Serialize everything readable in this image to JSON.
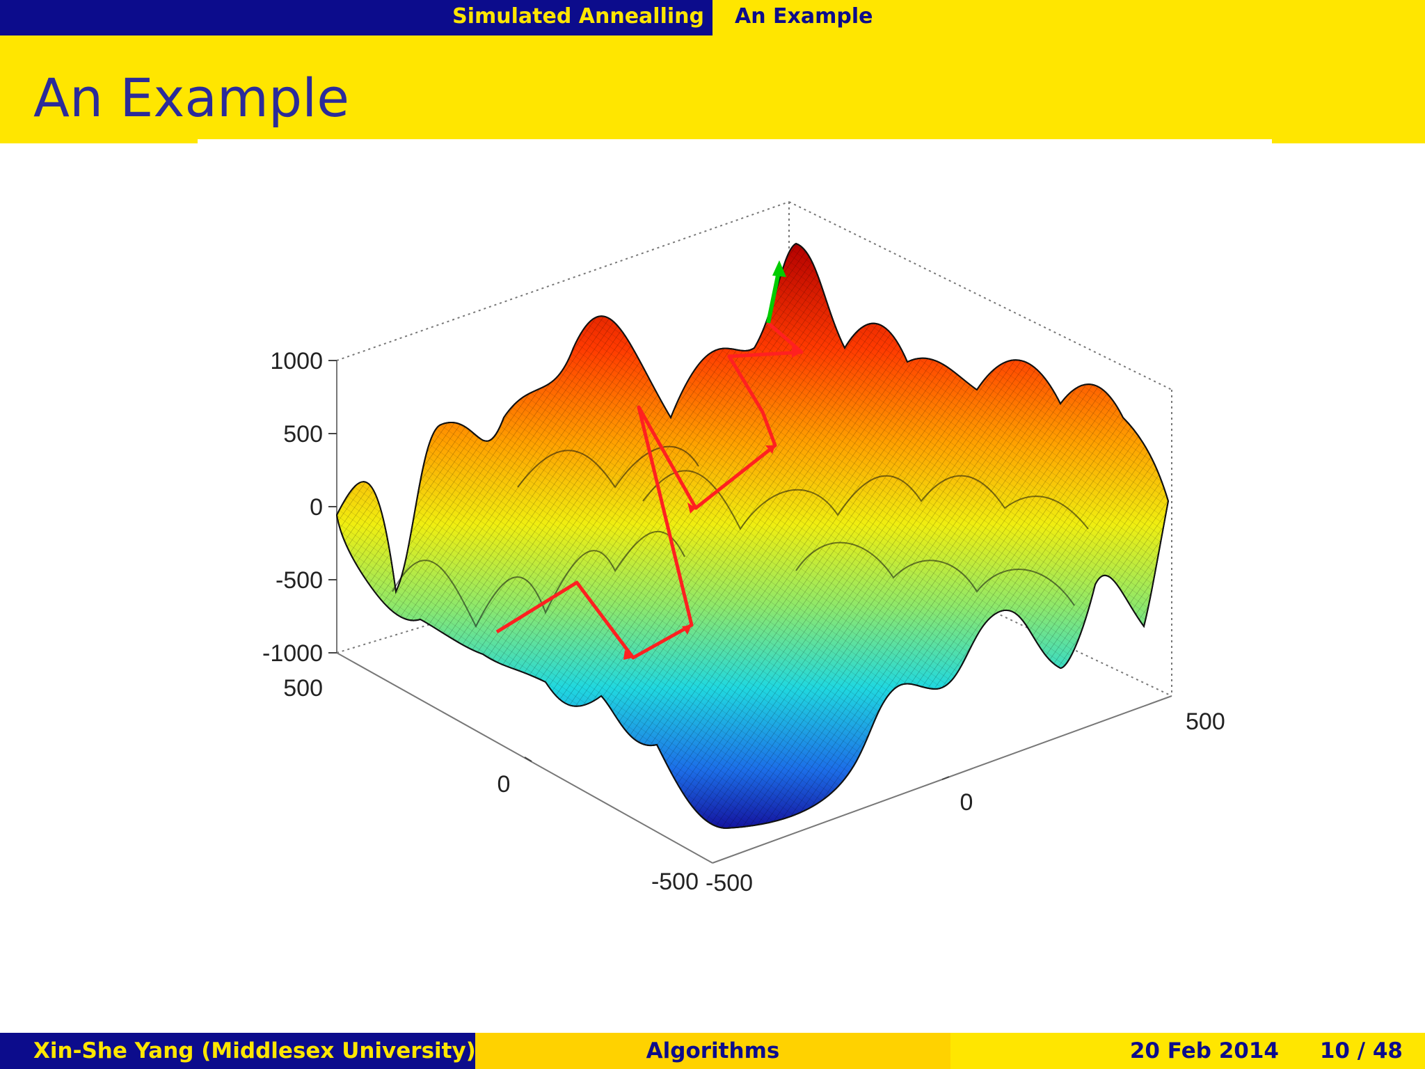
{
  "header": {
    "sections": [
      "Simulated Annealling",
      "An Example"
    ]
  },
  "slide": {
    "title": "An Example"
  },
  "chart_data": {
    "type": "surface",
    "z_ticks": [
      "1000",
      "500",
      "0",
      "-500",
      "-1000"
    ],
    "y_ticks": [
      "500",
      "0",
      "-500"
    ],
    "x_ticks": [
      "-500",
      "0",
      "500"
    ],
    "zlim": [
      -1000,
      1000
    ],
    "ylim": [
      -500,
      500
    ],
    "xlim": [
      -500,
      500
    ],
    "colormap": "jet",
    "path_color": "#ff2020",
    "final_step_color": "#00cc00",
    "grid": true
  },
  "footer": {
    "author": "Xin-She Yang (Middlesex University)",
    "title": "Algorithms",
    "date": "20 Feb 2014",
    "page": "10 / 48"
  }
}
